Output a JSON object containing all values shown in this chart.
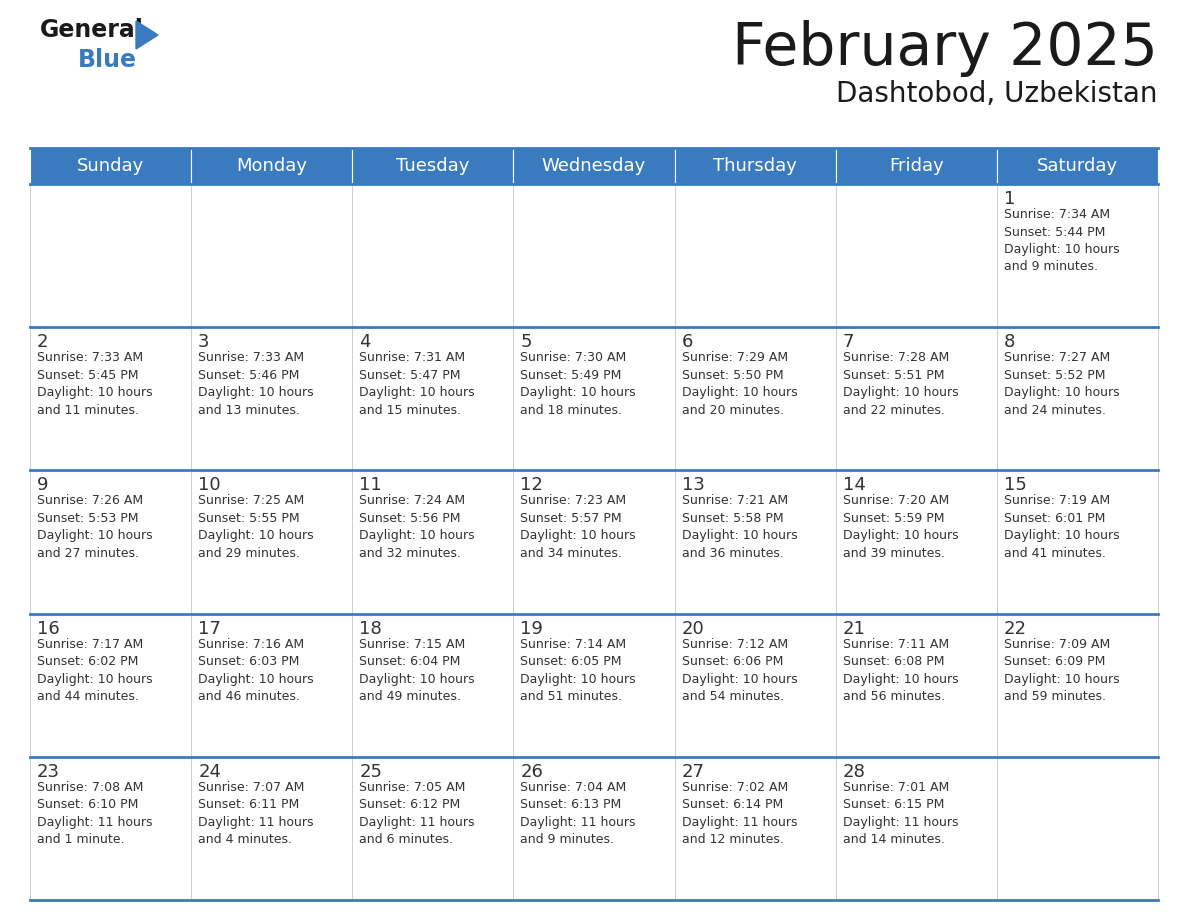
{
  "title": "February 2025",
  "subtitle": "Dashtobod, Uzbekistan",
  "header_color": "#3a7bbf",
  "header_text_color": "#ffffff",
  "cell_bg": "#ffffff",
  "grid_line_color": "#cccccc",
  "text_color": "#333333",
  "day_headers": [
    "Sunday",
    "Monday",
    "Tuesday",
    "Wednesday",
    "Thursday",
    "Friday",
    "Saturday"
  ],
  "days": [
    {
      "day": 1,
      "col": 6,
      "row": 0,
      "sunrise": "7:34 AM",
      "sunset": "5:44 PM",
      "daylight": "10 hours\nand 9 minutes."
    },
    {
      "day": 2,
      "col": 0,
      "row": 1,
      "sunrise": "7:33 AM",
      "sunset": "5:45 PM",
      "daylight": "10 hours\nand 11 minutes."
    },
    {
      "day": 3,
      "col": 1,
      "row": 1,
      "sunrise": "7:33 AM",
      "sunset": "5:46 PM",
      "daylight": "10 hours\nand 13 minutes."
    },
    {
      "day": 4,
      "col": 2,
      "row": 1,
      "sunrise": "7:31 AM",
      "sunset": "5:47 PM",
      "daylight": "10 hours\nand 15 minutes."
    },
    {
      "day": 5,
      "col": 3,
      "row": 1,
      "sunrise": "7:30 AM",
      "sunset": "5:49 PM",
      "daylight": "10 hours\nand 18 minutes."
    },
    {
      "day": 6,
      "col": 4,
      "row": 1,
      "sunrise": "7:29 AM",
      "sunset": "5:50 PM",
      "daylight": "10 hours\nand 20 minutes."
    },
    {
      "day": 7,
      "col": 5,
      "row": 1,
      "sunrise": "7:28 AM",
      "sunset": "5:51 PM",
      "daylight": "10 hours\nand 22 minutes."
    },
    {
      "day": 8,
      "col": 6,
      "row": 1,
      "sunrise": "7:27 AM",
      "sunset": "5:52 PM",
      "daylight": "10 hours\nand 24 minutes."
    },
    {
      "day": 9,
      "col": 0,
      "row": 2,
      "sunrise": "7:26 AM",
      "sunset": "5:53 PM",
      "daylight": "10 hours\nand 27 minutes."
    },
    {
      "day": 10,
      "col": 1,
      "row": 2,
      "sunrise": "7:25 AM",
      "sunset": "5:55 PM",
      "daylight": "10 hours\nand 29 minutes."
    },
    {
      "day": 11,
      "col": 2,
      "row": 2,
      "sunrise": "7:24 AM",
      "sunset": "5:56 PM",
      "daylight": "10 hours\nand 32 minutes."
    },
    {
      "day": 12,
      "col": 3,
      "row": 2,
      "sunrise": "7:23 AM",
      "sunset": "5:57 PM",
      "daylight": "10 hours\nand 34 minutes."
    },
    {
      "day": 13,
      "col": 4,
      "row": 2,
      "sunrise": "7:21 AM",
      "sunset": "5:58 PM",
      "daylight": "10 hours\nand 36 minutes."
    },
    {
      "day": 14,
      "col": 5,
      "row": 2,
      "sunrise": "7:20 AM",
      "sunset": "5:59 PM",
      "daylight": "10 hours\nand 39 minutes."
    },
    {
      "day": 15,
      "col": 6,
      "row": 2,
      "sunrise": "7:19 AM",
      "sunset": "6:01 PM",
      "daylight": "10 hours\nand 41 minutes."
    },
    {
      "day": 16,
      "col": 0,
      "row": 3,
      "sunrise": "7:17 AM",
      "sunset": "6:02 PM",
      "daylight": "10 hours\nand 44 minutes."
    },
    {
      "day": 17,
      "col": 1,
      "row": 3,
      "sunrise": "7:16 AM",
      "sunset": "6:03 PM",
      "daylight": "10 hours\nand 46 minutes."
    },
    {
      "day": 18,
      "col": 2,
      "row": 3,
      "sunrise": "7:15 AM",
      "sunset": "6:04 PM",
      "daylight": "10 hours\nand 49 minutes."
    },
    {
      "day": 19,
      "col": 3,
      "row": 3,
      "sunrise": "7:14 AM",
      "sunset": "6:05 PM",
      "daylight": "10 hours\nand 51 minutes."
    },
    {
      "day": 20,
      "col": 4,
      "row": 3,
      "sunrise": "7:12 AM",
      "sunset": "6:06 PM",
      "daylight": "10 hours\nand 54 minutes."
    },
    {
      "day": 21,
      "col": 5,
      "row": 3,
      "sunrise": "7:11 AM",
      "sunset": "6:08 PM",
      "daylight": "10 hours\nand 56 minutes."
    },
    {
      "day": 22,
      "col": 6,
      "row": 3,
      "sunrise": "7:09 AM",
      "sunset": "6:09 PM",
      "daylight": "10 hours\nand 59 minutes."
    },
    {
      "day": 23,
      "col": 0,
      "row": 4,
      "sunrise": "7:08 AM",
      "sunset": "6:10 PM",
      "daylight": "11 hours\nand 1 minute."
    },
    {
      "day": 24,
      "col": 1,
      "row": 4,
      "sunrise": "7:07 AM",
      "sunset": "6:11 PM",
      "daylight": "11 hours\nand 4 minutes."
    },
    {
      "day": 25,
      "col": 2,
      "row": 4,
      "sunrise": "7:05 AM",
      "sunset": "6:12 PM",
      "daylight": "11 hours\nand 6 minutes."
    },
    {
      "day": 26,
      "col": 3,
      "row": 4,
      "sunrise": "7:04 AM",
      "sunset": "6:13 PM",
      "daylight": "11 hours\nand 9 minutes."
    },
    {
      "day": 27,
      "col": 4,
      "row": 4,
      "sunrise": "7:02 AM",
      "sunset": "6:14 PM",
      "daylight": "11 hours\nand 12 minutes."
    },
    {
      "day": 28,
      "col": 5,
      "row": 4,
      "sunrise": "7:01 AM",
      "sunset": "6:15 PM",
      "daylight": "11 hours\nand 14 minutes."
    }
  ],
  "num_rows": 5,
  "num_cols": 7,
  "logo_general_color": "#1a1a1a",
  "logo_blue_color": "#3a7bbf",
  "logo_triangle_color": "#3a7bbf"
}
